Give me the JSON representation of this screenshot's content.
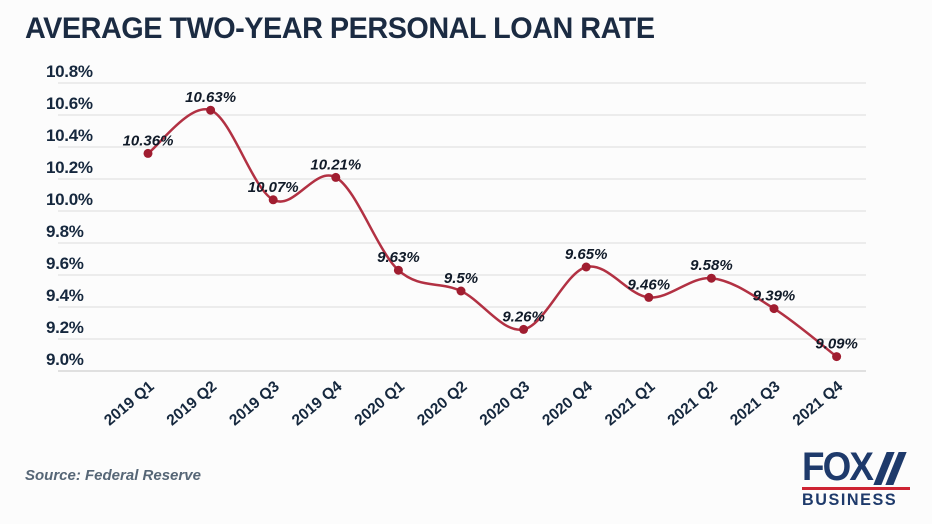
{
  "page": {
    "background": "#fcfcfc"
  },
  "header": {
    "title": "AVERAGE TWO-YEAR PERSONAL LOAN RATE"
  },
  "footer": {
    "source": "Source: Federal Reserve",
    "logo": {
      "line1": "FOX",
      "line2": "BUSINESS"
    }
  },
  "chart_data": {
    "type": "line",
    "title": "AVERAGE TWO-YEAR PERSONAL LOAN RATE",
    "categories": [
      "2019 Q1",
      "2019 Q2",
      "2019 Q3",
      "2019 Q4",
      "2020 Q1",
      "2020 Q2",
      "2020 Q3",
      "2020 Q4",
      "2021 Q1",
      "2021 Q2",
      "2021 Q3",
      "2021 Q4"
    ],
    "values": [
      10.36,
      10.63,
      10.07,
      10.21,
      9.63,
      9.5,
      9.26,
      9.65,
      9.46,
      9.58,
      9.39,
      9.09
    ],
    "point_labels": [
      "10.36%",
      "10.63%",
      "10.07%",
      "10.21%",
      "9.63%",
      "9.5%",
      "9.26%",
      "9.65%",
      "9.46%",
      "9.58%",
      "9.39%",
      "9.09%"
    ],
    "y_ticks": [
      "10.8%",
      "10.6%",
      "10.4%",
      "10.2%",
      "10.0%",
      "9.8%",
      "9.6%",
      "9.4%",
      "9.2%",
      "9.0%"
    ],
    "y_tick_values": [
      10.8,
      10.6,
      10.4,
      10.2,
      10.0,
      9.8,
      9.6,
      9.4,
      9.2,
      9.0
    ],
    "ylim": [
      9.0,
      10.8
    ],
    "xlabel": "",
    "ylabel": "",
    "grid": "horizontal",
    "legend": "none",
    "source": "Source: Federal Reserve",
    "line_color": "#b23143",
    "marker_color": "#a01d30",
    "point_label_color": "#111b29",
    "axis_text_color": "#16283e",
    "grid_color": "#e6e6e6",
    "axis_line_color": "#d7d7d7"
  }
}
